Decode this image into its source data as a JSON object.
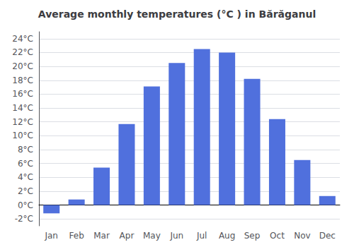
{
  "chart_data": {
    "type": "bar",
    "title": "Average monthly temperatures (°C ) in Bărăganul",
    "categories": [
      "Jan",
      "Feb",
      "Mar",
      "Apr",
      "May",
      "Jun",
      "Jul",
      "Aug",
      "Sep",
      "Oct",
      "Nov",
      "Dec"
    ],
    "values": [
      -1.2,
      0.8,
      5.4,
      11.7,
      17.1,
      20.5,
      22.5,
      22.0,
      18.2,
      12.4,
      6.5,
      1.3
    ],
    "ylim": [
      -3,
      25
    ],
    "yticks": [
      {
        "value": -2,
        "label": "-2°C"
      },
      {
        "value": 0,
        "label": "0°C"
      },
      {
        "value": 2,
        "label": "2°C"
      },
      {
        "value": 4,
        "label": "4°C"
      },
      {
        "value": 6,
        "label": "6°C"
      },
      {
        "value": 8,
        "label": "8°C"
      },
      {
        "value": 10,
        "label": "10°C"
      },
      {
        "value": 12,
        "label": "12°C"
      },
      {
        "value": 14,
        "label": "14°C"
      },
      {
        "value": 16,
        "label": "16°C"
      },
      {
        "value": 18,
        "label": "18°C"
      },
      {
        "value": 20,
        "label": "20°C"
      },
      {
        "value": 22,
        "label": "22°C"
      },
      {
        "value": 24,
        "label": "24°C"
      }
    ],
    "grid": true
  }
}
